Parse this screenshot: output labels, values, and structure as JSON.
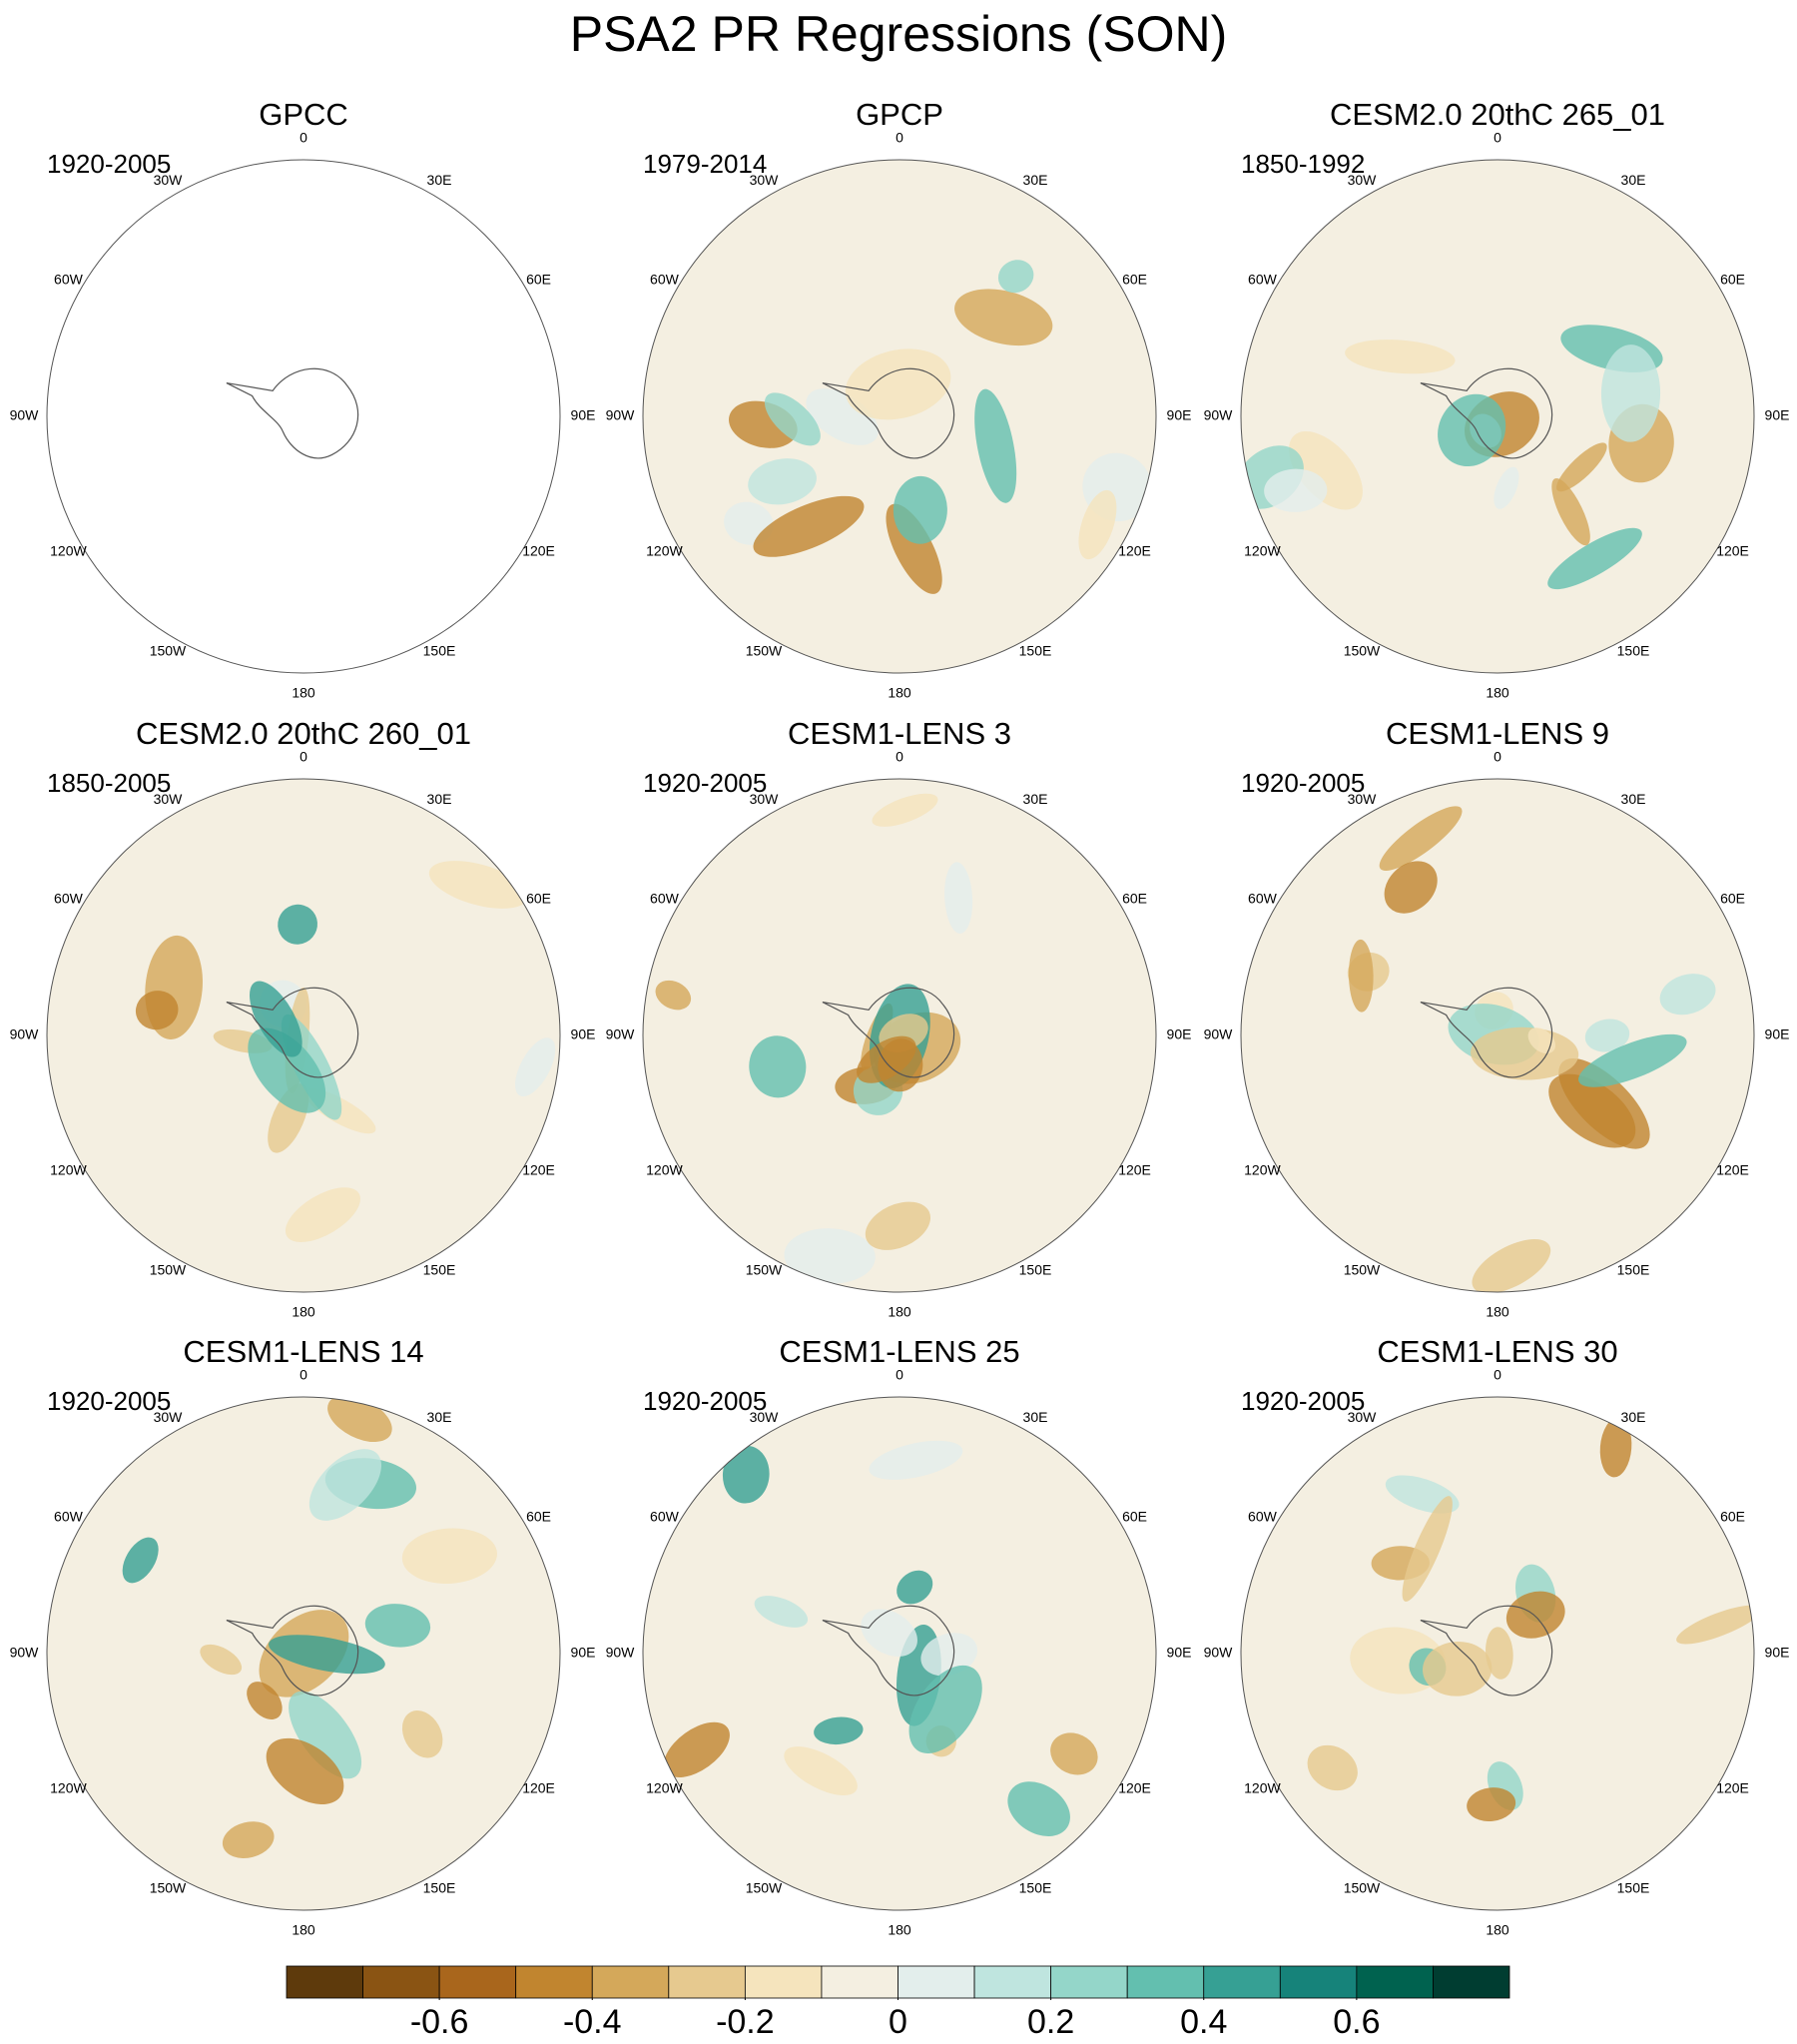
{
  "title": "PSA2 PR Regressions (SON)",
  "panels": [
    {
      "title": "GPCC",
      "period": "1920-2005"
    },
    {
      "title": "GPCP",
      "period": "1979-2014"
    },
    {
      "title": "CESM2.0 20thC 265_01",
      "period": "1850-1992"
    },
    {
      "title": "CESM2.0 20thC 260_01",
      "period": "1850-2005"
    },
    {
      "title": "CESM1-LENS 3",
      "period": "1920-2005"
    },
    {
      "title": "CESM1-LENS 9",
      "period": "1920-2005"
    },
    {
      "title": "CESM1-LENS 14",
      "period": "1920-2005"
    },
    {
      "title": "CESM1-LENS 25",
      "period": "1920-2005"
    },
    {
      "title": "CESM1-LENS 30",
      "period": "1920-2005"
    }
  ],
  "longitude_labels": [
    "0",
    "30E",
    "60E",
    "90E",
    "120E",
    "150E",
    "180",
    "150W",
    "120W",
    "90W",
    "60W",
    "30W"
  ],
  "colorbar": {
    "range": [
      -0.8,
      0.8
    ],
    "colors": [
      "#5e3a0c",
      "#8a5413",
      "#a9661c",
      "#c1852f",
      "#d4a85a",
      "#e6c98f",
      "#f5e4bd",
      "#f4efe1",
      "#e3eeec",
      "#bfe5df",
      "#94d6c9",
      "#63bfaf",
      "#36a094",
      "#16837a",
      "#00624f",
      "#003d31"
    ],
    "ticks": [
      -0.6,
      -0.4,
      -0.2,
      0,
      0.2,
      0.4,
      0.6
    ]
  }
}
